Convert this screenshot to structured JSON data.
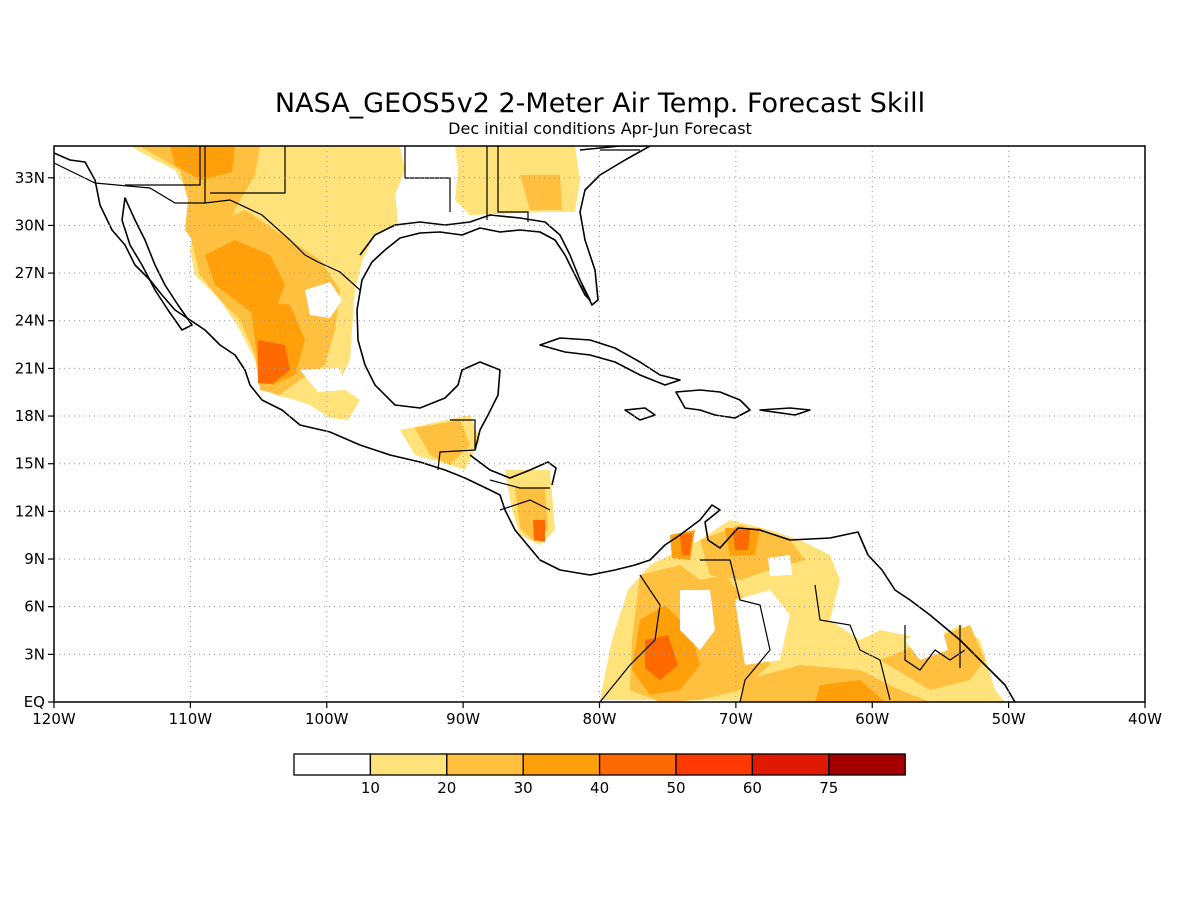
{
  "title": "NASA_GEOS5v2 2-Meter Air Temp. Forecast Skill",
  "subtitle": "Dec initial conditions  Apr-Jun Forecast",
  "map": {
    "lon_range": [
      -120,
      -40
    ],
    "lat_range": [
      0,
      35
    ],
    "grid": "dotted",
    "x_ticks": [
      {
        "value": -120,
        "label": "120W"
      },
      {
        "value": -110,
        "label": "110W"
      },
      {
        "value": -100,
        "label": "100W"
      },
      {
        "value": -90,
        "label": "90W"
      },
      {
        "value": -80,
        "label": "80W"
      },
      {
        "value": -70,
        "label": "70W"
      },
      {
        "value": -60,
        "label": "60W"
      },
      {
        "value": -50,
        "label": "50W"
      },
      {
        "value": -40,
        "label": "40W"
      }
    ],
    "y_ticks": [
      {
        "value": 0,
        "label": "EQ"
      },
      {
        "value": 3,
        "label": "3N"
      },
      {
        "value": 6,
        "label": "6N"
      },
      {
        "value": 9,
        "label": "9N"
      },
      {
        "value": 12,
        "label": "12N"
      },
      {
        "value": 15,
        "label": "15N"
      },
      {
        "value": 18,
        "label": "18N"
      },
      {
        "value": 21,
        "label": "21N"
      },
      {
        "value": 24,
        "label": "24N"
      },
      {
        "value": 27,
        "label": "27N"
      },
      {
        "value": 30,
        "label": "30N"
      },
      {
        "value": 33,
        "label": "33N"
      }
    ]
  },
  "colorbar": {
    "colors": [
      "#ffffff",
      "#ffe27a",
      "#ffbf3f",
      "#ffa00a",
      "#ff6a00",
      "#ff3a00",
      "#e01a00",
      "#a50000"
    ],
    "labels": [
      "10",
      "20",
      "30",
      "40",
      "50",
      "60",
      "75"
    ]
  },
  "skill_levels": {
    "10-20": "#ffe27a",
    "20-30": "#ffbf3f",
    "30-40": "#ffa00a",
    "40-50": "#ff6a00"
  }
}
